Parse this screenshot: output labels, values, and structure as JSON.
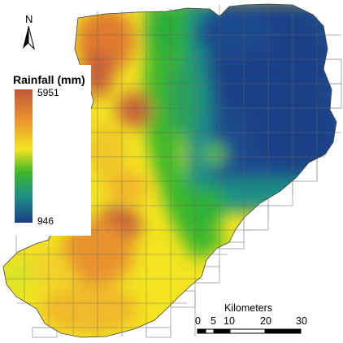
{
  "north_arrow": {
    "label": "N",
    "icon": "north-arrow-icon"
  },
  "legend": {
    "title": "Rainfall (mm)",
    "max_label": "5951",
    "min_label": "946",
    "max_value": 5951,
    "min_value": 946,
    "color_ramp": [
      "#c0573a",
      "#e8922e",
      "#f3e420",
      "#3cb82a",
      "#1f8f86",
      "#1a3f86"
    ]
  },
  "scale_bar": {
    "title": "Kilometers",
    "ticks": [
      "0",
      "5",
      "10",
      "20",
      "30"
    ]
  },
  "colors": {
    "wet": "#1a3f86",
    "dry": "#c0573a",
    "grid_line": "#888888",
    "background": "#ffffff"
  }
}
